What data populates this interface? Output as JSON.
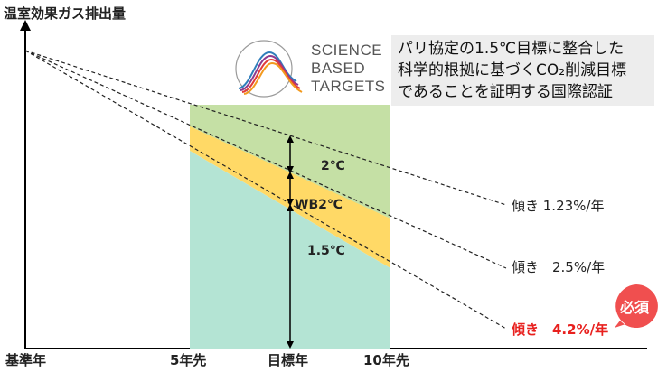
{
  "diagram": {
    "y_axis_title": "温室効果ガス排出量",
    "x_axis_labels": [
      "基準年",
      "5年先",
      "目標年",
      "10年先"
    ],
    "bands": [
      {
        "label": "2℃",
        "color": "#c5e0a5"
      },
      {
        "label": "WB2℃",
        "color": "#ffd966"
      },
      {
        "label": "1.5℃",
        "color": "#b4e4d4"
      }
    ],
    "slopes": [
      {
        "label": "傾き 1.23%/年",
        "color": "#222222"
      },
      {
        "label": "傾き　2.5%/年",
        "color": "#222222"
      },
      {
        "label": "傾き　4.2%/年",
        "color": "#e8201e"
      }
    ],
    "logo": {
      "name": "sbt-logo-icon",
      "lines": [
        "SCIENCE",
        "BASED",
        "TARGETS"
      ]
    },
    "callout_lines": [
      "パリ協定の1.5℃目標に整合した",
      "科学的根拠に基づくCO₂削減目標",
      "であることを証明する国際認証"
    ],
    "required_badge": "必須",
    "colors": {
      "required": "#e8201e",
      "badge": "#f04f4f"
    }
  }
}
